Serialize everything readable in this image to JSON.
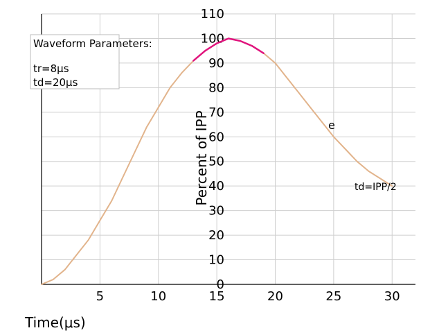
{
  "chart_data": {
    "type": "line",
    "ylabel": "Percent of IPP",
    "xlabel": "Time(μs)",
    "x_ticks": [
      5,
      10,
      15,
      20,
      25,
      30
    ],
    "y_ticks": [
      0,
      10,
      20,
      30,
      40,
      50,
      60,
      70,
      80,
      90,
      100,
      110
    ],
    "xlim": [
      0,
      32
    ],
    "ylim": [
      0,
      110
    ],
    "grid": true,
    "legend": {
      "title": "Waveform Parameters:",
      "items": [
        "tr=8μs",
        "td=20μs"
      ]
    },
    "annotations": {
      "decay": "e",
      "half_value": "td=IPP/2"
    },
    "series": [
      {
        "color": "#e2b48c",
        "x": [
          0,
          1,
          2,
          3,
          4,
          5,
          6,
          7,
          8,
          9,
          10,
          11,
          12,
          13,
          14,
          15,
          16,
          17,
          18,
          19,
          20,
          21,
          22,
          23,
          24,
          25,
          26,
          27,
          28,
          29,
          30
        ],
        "y": [
          0,
          2,
          6,
          12,
          18,
          26,
          34,
          44,
          54,
          64,
          72,
          80,
          86,
          91,
          95,
          98,
          100,
          99,
          97,
          94,
          90,
          84,
          78,
          72,
          66,
          60,
          55,
          50,
          46,
          43,
          40
        ]
      },
      {
        "color": "#e0147d",
        "x": [
          13,
          14,
          15,
          16,
          17,
          18,
          19
        ],
        "y": [
          91,
          95,
          98,
          100,
          99,
          97,
          94
        ]
      }
    ]
  }
}
